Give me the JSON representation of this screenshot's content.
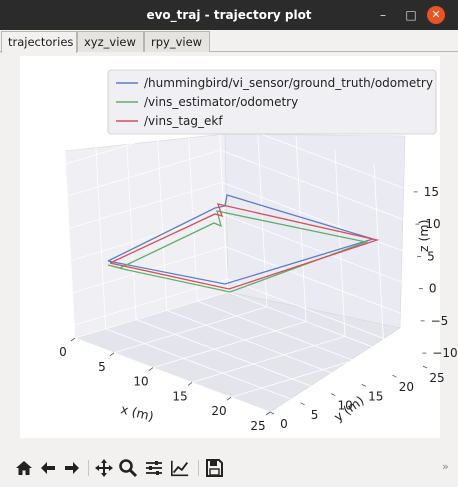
{
  "window": {
    "title": "evo_traj - trajectory plot",
    "min": "–",
    "max": "□",
    "close": "✕"
  },
  "tabs": [
    {
      "label": "trajectories",
      "active": true
    },
    {
      "label": "xyz_view",
      "active": false
    },
    {
      "label": "rpy_view",
      "active": false
    }
  ],
  "chart_data": {
    "type": "line",
    "projection": "3d",
    "legend": [
      {
        "name": "/hummingbird/vi_sensor/ground_truth/odometry",
        "color": "#5b7fc7"
      },
      {
        "name": "/vins_estimator/odometry",
        "color": "#5fae6a"
      },
      {
        "name": "/vins_tag_ekf",
        "color": "#d64f57"
      }
    ],
    "legend_position": "top-right",
    "xlabel": "x (m)",
    "ylabel": "y (m)",
    "zlabel": "z (m)",
    "x_ticks": [
      "0",
      "5",
      "10",
      "15",
      "20",
      "25"
    ],
    "y_ticks": [
      "0",
      "5",
      "10",
      "15",
      "20",
      "25"
    ],
    "z_ticks": [
      "15",
      "10",
      "5",
      "0",
      "−5",
      "−10"
    ],
    "xlim": [
      0,
      25
    ],
    "ylim": [
      0,
      25
    ],
    "zlim": [
      -12,
      17
    ],
    "grid": true
  },
  "toolbar": {
    "home": "home-icon",
    "back": "back-arrow-icon",
    "forward": "forward-arrow-icon",
    "pan": "pan-icon",
    "zoom": "zoom-icon",
    "configure": "configure-subplots-icon",
    "edit": "edit-axis-icon",
    "save": "save-icon",
    "more": "»"
  }
}
